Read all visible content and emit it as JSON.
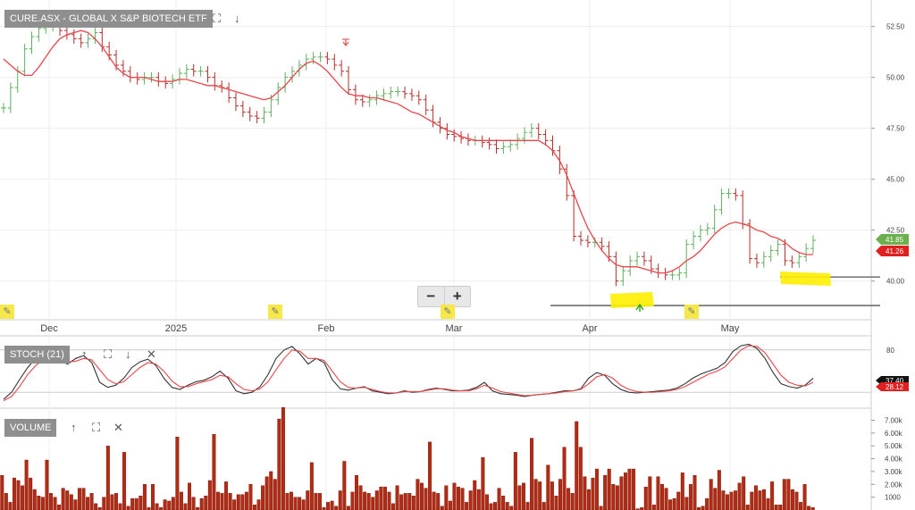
{
  "header": {
    "title": "CURE.ASX - GLOBAL X S&P BIOTECH ETF",
    "stoch_label": "STOCH (21)",
    "volume_label": "VOLUME"
  },
  "icons": {
    "expand": "expand-icon",
    "down": "arrow-down-icon",
    "up": "arrow-up-icon",
    "close": "close-icon",
    "pencil": "pencil-icon"
  },
  "glyphs": {
    "expand": "⛶",
    "down": "↓",
    "up": "↑",
    "close": "✕",
    "minus": "−",
    "plus": "+",
    "pencil": "✎"
  },
  "colors": {
    "up_bar": "#5fae5f",
    "down_bar": "#b0302a",
    "ma_line": "#e8464b",
    "stoch_k": "#333333",
    "stoch_d": "#e8464b",
    "volume_bar": "#b52a12",
    "highlight": "#ffee00",
    "price_label_green": "#6ab04c",
    "price_label_red": "#e02020"
  },
  "chart_data": [
    {
      "type": "line",
      "panel": "price",
      "title": "CURE.ASX - GLOBAL X S&P BIOTECH ETF",
      "x_ticks": [
        "Dec",
        "2025",
        "Feb",
        "Mar",
        "Apr",
        "May"
      ],
      "y_ticks": [
        "52.50",
        "50.00",
        "47.50",
        "45.00",
        "42.50",
        "40.00"
      ],
      "ylim": [
        38.1,
        53.8
      ],
      "price_labels": [
        "41.85",
        "41.26"
      ],
      "support_levels": [
        40.2,
        38.8
      ],
      "series": [
        {
          "values": [
            48.5,
            49.5,
            50.3,
            51.4,
            52.0,
            52.4,
            52.5,
            52.6,
            52.3,
            52.1,
            51.9,
            51.7,
            51.9,
            52.2,
            51.5,
            51.1,
            50.6,
            50.3,
            50.0,
            49.9,
            50.0,
            50.0,
            49.8,
            49.7,
            49.9,
            50.2,
            50.4,
            50.3,
            50.3,
            50.0,
            49.6,
            49.5,
            49.0,
            48.6,
            48.3,
            48.1,
            48.0,
            48.3,
            48.9,
            49.5,
            50.0,
            50.3,
            50.6,
            50.9,
            51.0,
            51.0,
            50.9,
            50.6,
            50.3,
            49.4,
            48.9,
            48.8,
            48.9,
            49.1,
            49.2,
            49.3,
            49.3,
            49.2,
            49.1,
            48.9,
            48.4,
            47.8,
            47.5,
            47.2,
            47.1,
            47.0,
            46.9,
            46.9,
            46.8,
            46.7,
            46.5,
            46.6,
            46.7,
            47.0,
            47.3,
            47.5,
            47.2,
            46.9,
            46.4,
            45.5,
            44.2,
            42.2,
            42.0,
            41.9,
            41.9,
            41.7,
            41.2,
            40.0,
            40.5,
            41.0,
            41.2,
            41.0,
            40.6,
            40.4,
            40.3,
            40.3,
            40.4,
            41.8,
            42.2,
            42.5,
            42.6,
            43.5,
            44.3,
            44.3,
            44.2,
            42.8,
            41.1,
            40.9,
            41.2,
            41.5,
            41.8,
            41.0,
            40.9,
            41.2,
            41.6,
            42.0
          ]
        },
        {
          "name": "ma",
          "values": [
            50.9,
            50.6,
            50.3,
            50.1,
            50.1,
            50.5,
            51.0,
            51.5,
            51.9,
            52.1,
            52.2,
            52.3,
            52.2,
            51.9,
            51.5,
            51.0,
            50.5,
            50.2,
            50.0,
            50.0,
            50.0,
            49.9,
            49.8,
            49.8,
            49.8,
            49.9,
            49.9,
            49.8,
            49.7,
            49.6,
            49.6,
            49.5,
            49.4,
            49.3,
            49.2,
            49.1,
            49.0,
            48.9,
            49.0,
            49.3,
            49.6,
            50.0,
            50.4,
            50.7,
            50.8,
            50.6,
            50.3,
            49.9,
            49.5,
            49.2,
            49.1,
            49.1,
            49.0,
            49.0,
            48.9,
            48.8,
            48.7,
            48.5,
            48.3,
            48.2,
            48.0,
            47.8,
            47.6,
            47.4,
            47.3,
            47.1,
            47.0,
            46.9,
            46.9,
            46.9,
            46.9,
            46.9,
            46.9,
            46.9,
            46.9,
            46.9,
            46.9,
            46.7,
            46.4,
            45.9,
            45.2,
            44.3,
            43.4,
            42.6,
            42.0,
            41.5,
            41.1,
            40.8,
            40.7,
            40.7,
            40.7,
            40.6,
            40.5,
            40.4,
            40.4,
            40.5,
            40.7,
            41.0,
            41.2,
            41.5,
            41.9,
            42.3,
            42.6,
            42.8,
            42.9,
            42.8,
            42.7,
            42.5,
            42.4,
            42.2,
            42.1,
            41.9,
            41.6,
            41.4,
            41.3,
            41.3
          ]
        }
      ]
    },
    {
      "type": "line",
      "panel": "stoch",
      "title": "STOCH (21)",
      "y_ticks": [
        "80"
      ],
      "ylim": [
        0,
        100
      ],
      "price_labels": [
        "37.40",
        "28.12"
      ],
      "series": [
        {
          "values": [
            10,
            20,
            38,
            55,
            68,
            72,
            70,
            65,
            60,
            68,
            72,
            62,
            34,
            27,
            30,
            40,
            55,
            63,
            67,
            58,
            40,
            27,
            24,
            30,
            35,
            37,
            42,
            50,
            40,
            22,
            18,
            20,
            28,
            45,
            68,
            80,
            85,
            74,
            60,
            68,
            62,
            38,
            25,
            23,
            26,
            28,
            22,
            20,
            18,
            19,
            22,
            20,
            21,
            24,
            26,
            24,
            22,
            22,
            23,
            27,
            34,
            22,
            18,
            17,
            16,
            14,
            16,
            17,
            18,
            20,
            22,
            22,
            25,
            40,
            48,
            44,
            32,
            24,
            20,
            19,
            20,
            21,
            22,
            23,
            26,
            32,
            40,
            46,
            50,
            54,
            62,
            78,
            86,
            88,
            82,
            68,
            48,
            32,
            28,
            26,
            30,
            40
          ]
        },
        {
          "values": [
            8,
            14,
            28,
            45,
            58,
            66,
            70,
            68,
            63,
            64,
            68,
            66,
            52,
            38,
            32,
            35,
            45,
            55,
            62,
            60,
            50,
            36,
            28,
            28,
            32,
            35,
            38,
            44,
            42,
            32,
            24,
            22,
            25,
            35,
            52,
            68,
            80,
            78,
            68,
            68,
            65,
            50,
            35,
            27,
            26,
            27,
            24,
            21,
            19,
            19,
            21,
            21,
            21,
            23,
            25,
            25,
            23,
            22,
            22,
            25,
            30,
            26,
            21,
            19,
            17,
            15,
            16,
            17,
            18,
            19,
            21,
            22,
            24,
            32,
            42,
            45,
            40,
            30,
            24,
            21,
            20,
            20,
            21,
            22,
            24,
            28,
            34,
            40,
            46,
            50,
            56,
            68,
            80,
            86,
            85,
            76,
            60,
            44,
            34,
            30,
            29,
            34
          ]
        }
      ]
    },
    {
      "type": "bar",
      "panel": "volume",
      "title": "VOLUME",
      "y_ticks": [
        "7.00k",
        "6.00k",
        "5.00k",
        "4.00k",
        "3.00k",
        "2.00k",
        "1000"
      ],
      "ylim": [
        0,
        7800
      ],
      "values": [
        2700,
        1300,
        600,
        2500,
        2300,
        1900,
        3900,
        2500,
        1600,
        1100,
        1000,
        3900,
        1300,
        1000,
        400,
        1700,
        1500,
        1200,
        800,
        1700,
        1700,
        1000,
        1300,
        500,
        200,
        1000,
        5000,
        1200,
        1300,
        500,
        4500,
        300,
        900,
        900,
        1100,
        2000,
        200,
        2000,
        500,
        200,
        800,
        700,
        1000,
        5700,
        1400,
        500,
        2100,
        1000,
        200,
        900,
        1100,
        2300,
        5900,
        1400,
        1300,
        2200,
        1300,
        800,
        1200,
        1200,
        1400,
        2000,
        400,
        800,
        1900,
        2600,
        3000,
        2400,
        7100,
        8000,
        1300,
        1400,
        1000,
        1000,
        800,
        1500,
        3700,
        1300,
        1300,
        200,
        600,
        700,
        300,
        1500,
        3800,
        300,
        1400,
        2700,
        1900,
        1400,
        1300,
        1000,
        1500,
        1800,
        1800,
        1400,
        500,
        1900,
        1200,
        1300,
        1300,
        1100,
        2400,
        2100,
        1700,
        5300,
        1400,
        1300,
        300,
        1900,
        700,
        2100,
        1800,
        1700,
        600,
        1500,
        2300,
        1600,
        4100,
        1200,
        500,
        600,
        1700,
        1100,
        600,
        300,
        4500,
        1900,
        2100,
        600,
        5600,
        2400,
        2200,
        600,
        3500,
        2200,
        1100,
        2400,
        4900,
        1700,
        1300,
        6900,
        4900,
        2600,
        1600,
        2500,
        3200,
        300,
        2700,
        3200,
        2000,
        1900,
        2600,
        2900,
        3200,
        3200,
        100,
        200,
        1800,
        2600,
        400,
        2600,
        2000,
        1700,
        800,
        900,
        1400,
        2900,
        1000,
        2000,
        2700,
        200,
        300,
        900,
        2400,
        1700,
        3100,
        1500,
        1200,
        1400,
        1500,
        2100,
        2600,
        400,
        1400,
        1900,
        1500,
        1600,
        900,
        2200,
        400,
        400,
        2400,
        2400,
        1600,
        1400,
        600,
        2000,
        300,
        200
      ]
    }
  ]
}
